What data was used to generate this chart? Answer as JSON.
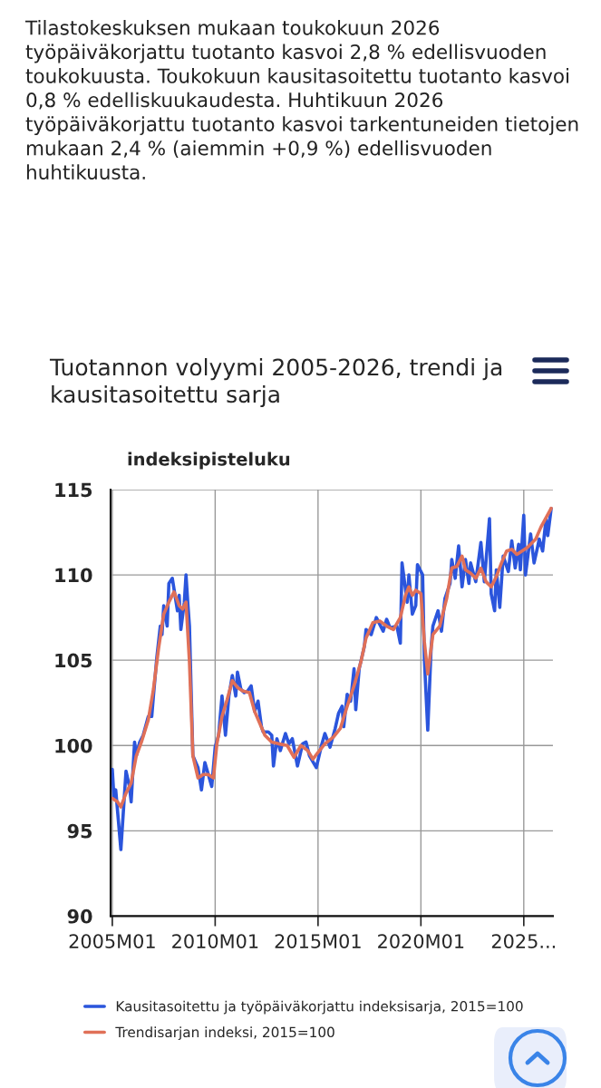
{
  "chart_data": {
    "type": "line",
    "title": "Tuotannon volyymi 2005-2026, trendi ja kausitasoitettu sarja",
    "ylabel": "indeksipisteluku",
    "annotations": [
      "Tilastokeskuksen mukaan toukokuun 2026 työpäiväkorjattu tuotanto kasvoi 2,8 % edellisvuoden toukokuusta. Toukokuun kausitasoitettu tuotanto kasvoi 0,8 % edelliskuukaudesta. Huhtikuun 2026 työpäiväkorjattu tuotanto kasvoi tarkentuneiden tietojen mukaan 2,4 % (aiemmin +0,9 %) edellisvuoden huhtikuusta."
    ],
    "xlim": [
      "2004-12",
      "2026-06"
    ],
    "xticks": [
      {
        "value": "2005-01",
        "label": "2005M01"
      },
      {
        "value": "2010-01",
        "label": "2010M01"
      },
      {
        "value": "2015-01",
        "label": "2015M01"
      },
      {
        "value": "2020-01",
        "label": "2020M01"
      },
      {
        "value": "2025-01",
        "label": "2025..."
      }
    ],
    "ylim": [
      90,
      115
    ],
    "yticks": [
      90,
      95,
      100,
      105,
      110,
      115
    ],
    "grid": true,
    "legend": "bottom",
    "line_style": "solid",
    "marker": "none",
    "series": [
      {
        "name": "Kausitasoitettu ja työpäiväkorjattu indeksisarja, 2015=100",
        "color": "#2b55dc",
        "x": [
          "2005-01",
          "2005-02",
          "2005-03",
          "2005-06",
          "2005-09",
          "2005-11",
          "2005-12",
          "2006-02",
          "2006-03",
          "2006-05",
          "2006-07",
          "2006-10",
          "2006-12",
          "2007-01",
          "2007-03",
          "2007-05",
          "2007-06",
          "2007-07",
          "2007-09",
          "2007-10",
          "2007-12",
          "2008-03",
          "2008-04",
          "2008-05",
          "2008-07",
          "2008-08",
          "2008-09",
          "2008-10",
          "2008-12",
          "2009-03",
          "2009-05",
          "2009-07",
          "2009-09",
          "2009-11",
          "2010-01",
          "2010-03",
          "2010-05",
          "2010-07",
          "2010-09",
          "2010-11",
          "2011-01",
          "2011-02",
          "2011-04",
          "2011-06",
          "2011-08",
          "2011-10",
          "2011-12",
          "2012-02",
          "2012-04",
          "2012-05",
          "2012-08",
          "2012-10",
          "2012-11",
          "2013-01",
          "2013-03",
          "2013-06",
          "2013-08",
          "2013-10",
          "2014-01",
          "2014-04",
          "2014-06",
          "2014-08",
          "2014-12",
          "2015-03",
          "2015-05",
          "2015-08",
          "2015-11",
          "2016-01",
          "2016-03",
          "2016-04",
          "2016-06",
          "2016-08",
          "2016-10",
          "2016-11",
          "2017-01",
          "2017-04",
          "2017-05",
          "2017-08",
          "2017-11",
          "2018-03",
          "2018-05",
          "2018-07",
          "2018-11",
          "2019-01",
          "2019-02",
          "2019-05",
          "2019-06",
          "2019-08",
          "2019-10",
          "2019-11",
          "2020-02",
          "2020-03",
          "2020-05",
          "2020-07",
          "2020-08",
          "2020-11",
          "2021-01",
          "2021-03",
          "2021-06",
          "2021-07",
          "2021-09",
          "2021-11",
          "2022-01",
          "2022-03",
          "2022-05",
          "2022-06",
          "2022-09",
          "2022-12",
          "2023-02",
          "2023-05",
          "2023-06",
          "2023-08",
          "2023-09",
          "2023-11",
          "2024-01",
          "2024-04",
          "2024-06",
          "2024-08",
          "2024-10",
          "2024-11",
          "2025-01",
          "2025-02",
          "2025-05",
          "2025-07",
          "2025-09",
          "2025-10",
          "2025-12",
          "2026-02",
          "2026-03",
          "2026-05"
        ],
        "values": [
          98.6,
          96.9,
          97.4,
          93.9,
          98.5,
          97.6,
          96.7,
          100.2,
          99.4,
          100.2,
          100.6,
          101.7,
          101.7,
          102.9,
          105.2,
          107.0,
          106.5,
          108.2,
          107.0,
          109.5,
          109.8,
          107.9,
          108.8,
          106.8,
          108.4,
          110.0,
          108.4,
          107.0,
          99.4,
          98.7,
          97.4,
          99.0,
          98.3,
          97.6,
          99.9,
          100.6,
          102.9,
          100.6,
          102.9,
          104.1,
          102.9,
          104.3,
          103.3,
          103.1,
          103.2,
          103.5,
          102.0,
          102.6,
          101.1,
          100.8,
          100.8,
          100.6,
          98.8,
          100.4,
          99.7,
          100.7,
          100.1,
          100.4,
          98.8,
          100.1,
          100.2,
          99.4,
          98.7,
          100.0,
          100.7,
          99.9,
          101.0,
          101.9,
          102.3,
          101.1,
          103.0,
          102.6,
          104.5,
          102.1,
          104.5,
          105.8,
          106.8,
          106.5,
          107.5,
          106.7,
          107.4,
          106.9,
          107.0,
          106.0,
          110.7,
          108.4,
          110.0,
          107.7,
          108.2,
          110.6,
          110.0,
          105.1,
          100.9,
          105.8,
          107.0,
          107.9,
          106.7,
          108.6,
          109.5,
          110.9,
          109.8,
          111.7,
          109.3,
          110.9,
          109.5,
          110.7,
          109.6,
          111.9,
          109.6,
          113.3,
          108.9,
          107.9,
          110.3,
          108.1,
          111.1,
          110.2,
          112.0,
          110.4,
          111.8,
          110.3,
          113.5,
          110.0,
          112.4,
          110.7,
          111.6,
          112.1,
          111.4,
          113.3,
          112.3,
          113.9
        ]
      },
      {
        "name": "Trendisarjan indeksi, 2015=100",
        "color": "#e07058",
        "x": [
          "2005-01",
          "2005-04",
          "2005-06",
          "2005-09",
          "2005-12",
          "2006-03",
          "2006-06",
          "2006-10",
          "2007-01",
          "2007-04",
          "2007-07",
          "2007-10",
          "2008-01",
          "2008-04",
          "2008-06",
          "2008-08",
          "2008-10",
          "2008-12",
          "2009-03",
          "2009-06",
          "2009-09",
          "2009-12",
          "2010-02",
          "2010-05",
          "2010-08",
          "2010-11",
          "2011-02",
          "2011-05",
          "2011-09",
          "2011-12",
          "2012-03",
          "2012-06",
          "2012-10",
          "2013-02",
          "2013-07",
          "2013-11",
          "2014-03",
          "2014-07",
          "2014-10",
          "2015-01",
          "2015-05",
          "2015-10",
          "2016-02",
          "2016-06",
          "2016-10",
          "2017-02",
          "2017-05",
          "2017-09",
          "2018-01",
          "2018-05",
          "2018-09",
          "2019-01",
          "2019-04",
          "2019-06",
          "2019-08",
          "2019-10",
          "2020-01",
          "2020-03",
          "2020-05",
          "2020-08",
          "2020-12",
          "2021-04",
          "2021-07",
          "2021-10",
          "2022-01",
          "2022-03",
          "2022-06",
          "2022-09",
          "2022-12",
          "2023-03",
          "2023-06",
          "2023-09",
          "2023-12",
          "2024-03",
          "2024-06",
          "2024-09",
          "2024-12",
          "2025-03",
          "2025-08",
          "2025-11",
          "2026-05"
        ],
        "values": [
          96.9,
          96.7,
          96.4,
          97.2,
          97.8,
          99.4,
          100.2,
          101.5,
          103.3,
          105.7,
          107.7,
          108.4,
          109.0,
          108.2,
          108.0,
          108.4,
          104.9,
          99.4,
          98.1,
          98.3,
          98.3,
          98.1,
          100.1,
          101.7,
          102.7,
          103.8,
          103.4,
          103.2,
          103.1,
          102.0,
          101.3,
          100.6,
          100.2,
          100.1,
          100.0,
          99.3,
          100.0,
          99.7,
          99.2,
          99.6,
          100.1,
          100.5,
          101.0,
          102.3,
          103.5,
          104.9,
          106.3,
          107.2,
          107.3,
          107.0,
          106.8,
          107.5,
          108.8,
          109.3,
          108.8,
          109.1,
          108.9,
          106.1,
          104.2,
          106.5,
          107.0,
          108.6,
          110.4,
          110.5,
          111.1,
          110.3,
          110.1,
          109.8,
          110.4,
          109.6,
          109.3,
          109.9,
          110.7,
          111.4,
          111.5,
          111.2,
          111.4,
          111.6,
          112.1,
          112.8,
          113.9
        ]
      }
    ]
  }
}
